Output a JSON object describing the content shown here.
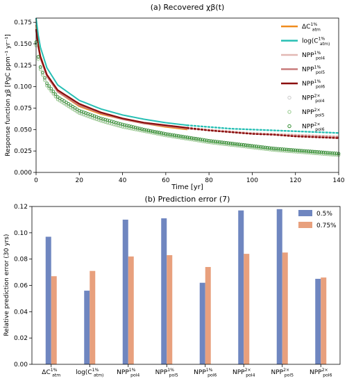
{
  "chart_data": [
    {
      "type": "line",
      "title": "(a)   Recovered χβ(t)",
      "xlabel": "Time [yr]",
      "ylabel": "Response function χβ [PgC ppm⁻¹ yr⁻¹]",
      "xlim": [
        0,
        140
      ],
      "ylim": [
        0,
        0.18
      ],
      "xticks": [
        "0",
        "20",
        "40",
        "60",
        "80",
        "100",
        "120",
        "140"
      ],
      "yticks": [
        "0.000",
        "0.025",
        "0.050",
        "0.075",
        "0.100",
        "0.125",
        "0.150",
        "0.175"
      ],
      "legend_position": "top-right",
      "series": [
        {
          "name": "ΔC_atm^1%",
          "style": "line",
          "color": "#f08c1e",
          "x": [
            0,
            1,
            2,
            5,
            10,
            20,
            30,
            40,
            50,
            60,
            70
          ],
          "values": [
            0.172,
            0.15,
            0.136,
            0.113,
            0.094,
            0.077,
            0.068,
            0.062,
            0.057,
            0.053,
            0.05
          ]
        },
        {
          "name": "log(C_atm)^1%",
          "style": "line",
          "color": "#27bfb4",
          "x": [
            0,
            1,
            2,
            5,
            10,
            20,
            30,
            40,
            50,
            60,
            70,
            80,
            90,
            100,
            110,
            120,
            130,
            140
          ],
          "values": [
            0.18,
            0.16,
            0.146,
            0.122,
            0.102,
            0.084,
            0.074,
            0.067,
            0.062,
            0.058,
            0.055,
            0.053,
            0.051,
            0.05,
            0.049,
            0.048,
            0.047,
            0.046
          ]
        },
        {
          "name": "NPP_pol4^1%",
          "style": "line",
          "color": "#e2b8b4",
          "x": [
            0,
            1,
            2,
            5,
            10,
            20,
            30,
            40,
            50,
            60,
            70,
            80,
            90,
            100,
            110,
            120,
            130,
            140
          ],
          "values": [
            0.166,
            0.147,
            0.134,
            0.113,
            0.095,
            0.079,
            0.07,
            0.063,
            0.058,
            0.055,
            0.052,
            0.05,
            0.048,
            0.046,
            0.045,
            0.044,
            0.043,
            0.042
          ]
        },
        {
          "name": "NPP_pol5^1%",
          "style": "line",
          "color": "#c87c7c",
          "x": [
            0,
            1,
            2,
            5,
            10,
            20,
            30,
            40,
            50,
            60,
            70,
            80,
            90,
            100,
            110,
            120,
            130,
            140
          ],
          "values": [
            0.165,
            0.146,
            0.133,
            0.112,
            0.094,
            0.078,
            0.069,
            0.062,
            0.057,
            0.054,
            0.051,
            0.049,
            0.047,
            0.045,
            0.044,
            0.043,
            0.042,
            0.041
          ]
        },
        {
          "name": "NPP_pol6^1%",
          "style": "line",
          "color": "#8b0d0d",
          "x": [
            0,
            1,
            2,
            5,
            10,
            20,
            30,
            40,
            50,
            60,
            70,
            80,
            90,
            100,
            110,
            120,
            130,
            140
          ],
          "values": [
            0.167,
            0.148,
            0.135,
            0.114,
            0.096,
            0.08,
            0.07,
            0.063,
            0.058,
            0.055,
            0.052,
            0.049,
            0.047,
            0.045,
            0.044,
            0.042,
            0.041,
            0.04
          ]
        },
        {
          "name": "NPP_pol4^2×",
          "style": "markers",
          "color": "#c9c9c9",
          "x": [
            0,
            1,
            2,
            5,
            10,
            20,
            30,
            40,
            50,
            60,
            70,
            80,
            90,
            100,
            110,
            120,
            130,
            140
          ],
          "values": [
            0.15,
            0.134,
            0.122,
            0.102,
            0.086,
            0.07,
            0.061,
            0.054,
            0.049,
            0.044,
            0.04,
            0.036,
            0.033,
            0.03,
            0.027,
            0.025,
            0.023,
            0.021
          ]
        },
        {
          "name": "NPP_pol5^2×",
          "style": "markers",
          "color": "#93c98a",
          "x": [
            0,
            1,
            2,
            5,
            10,
            20,
            30,
            40,
            50,
            60,
            70,
            80,
            90,
            100,
            110,
            120,
            130,
            140
          ],
          "values": [
            0.148,
            0.132,
            0.12,
            0.101,
            0.085,
            0.069,
            0.06,
            0.053,
            0.048,
            0.043,
            0.039,
            0.035,
            0.032,
            0.029,
            0.026,
            0.024,
            0.022,
            0.02
          ]
        },
        {
          "name": "NPP_pol6^2×",
          "style": "markers",
          "color": "#2e8b2e",
          "x": [
            0,
            1,
            2,
            5,
            10,
            20,
            30,
            40,
            50,
            60,
            70,
            80,
            90,
            100,
            110,
            120,
            130,
            140
          ],
          "values": [
            0.152,
            0.135,
            0.123,
            0.104,
            0.088,
            0.072,
            0.063,
            0.056,
            0.05,
            0.045,
            0.041,
            0.037,
            0.034,
            0.031,
            0.028,
            0.026,
            0.024,
            0.022
          ]
        }
      ]
    },
    {
      "type": "bar",
      "title": "(b)    Prediction error (7)",
      "xlabel": "",
      "ylabel": "Relative prediction error (30 yrs)",
      "ylim": [
        0,
        0.12
      ],
      "yticks": [
        "0.00",
        "0.02",
        "0.04",
        "0.06",
        "0.08",
        "0.10",
        "0.12"
      ],
      "legend_position": "top-right",
      "categories": [
        "ΔC_atm^1%",
        "log(C_atm)^1%",
        "NPP_pol4^1%",
        "NPP_pol5^1%",
        "NPP_pol6^1%",
        "NPP_pol4^2×",
        "NPP_pol5^2×",
        "NPP_pol6^2×"
      ],
      "series": [
        {
          "name": "0.5%",
          "color": "#6f86c0",
          "values": [
            0.097,
            0.056,
            0.11,
            0.111,
            0.062,
            0.117,
            0.118,
            0.065
          ]
        },
        {
          "name": "0.75%",
          "color": "#e8a07d",
          "values": [
            0.067,
            0.071,
            0.082,
            0.083,
            0.074,
            0.084,
            0.085,
            0.066
          ]
        }
      ]
    }
  ]
}
